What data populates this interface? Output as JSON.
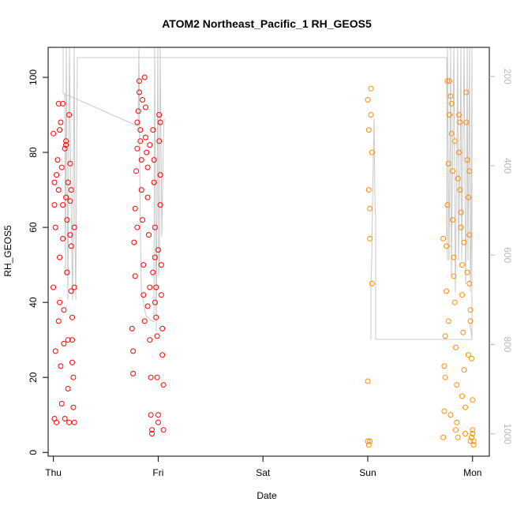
{
  "chart_data": {
    "type": "scatter",
    "title": "ATOM2 Northeast_Pacific_1 RH_GEOS5",
    "xlabel": "Date",
    "ylabel": "RH_GEOS5",
    "x_ticks": [
      "Thu",
      "Fri",
      "Sat",
      "Sun",
      "Mon"
    ],
    "xlim": [
      -0.05,
      4.16
    ],
    "ylim": [
      -1,
      108
    ],
    "y_ticks": [
      0,
      20,
      40,
      60,
      80,
      100
    ],
    "y2_ticks": [
      200,
      400,
      600,
      800,
      1000
    ],
    "y2lim": [
      1050,
      135
    ],
    "grid": false,
    "series": [
      {
        "color": "#ff0000",
        "points": [
          [
            0.0,
            85
          ],
          [
            0.01,
            72
          ],
          [
            0.0,
            44
          ],
          [
            0.02,
            27
          ],
          [
            0.01,
            9
          ],
          [
            0.03,
            8
          ],
          [
            0.02,
            60
          ],
          [
            0.04,
            78
          ],
          [
            0.05,
            93
          ],
          [
            0.05,
            70
          ],
          [
            0.06,
            52
          ],
          [
            0.06,
            40
          ],
          [
            0.07,
            23
          ],
          [
            0.08,
            13
          ],
          [
            0.07,
            88
          ],
          [
            0.08,
            76
          ],
          [
            0.09,
            66
          ],
          [
            0.09,
            57
          ],
          [
            0.1,
            38
          ],
          [
            0.1,
            29
          ],
          [
            0.11,
            9
          ],
          [
            0.12,
            83
          ],
          [
            0.12,
            68
          ],
          [
            0.13,
            62
          ],
          [
            0.13,
            48
          ],
          [
            0.14,
            30
          ],
          [
            0.14,
            17
          ],
          [
            0.15,
            8
          ],
          [
            0.15,
            90
          ],
          [
            0.16,
            77
          ],
          [
            0.16,
            67
          ],
          [
            0.17,
            55
          ],
          [
            0.17,
            43
          ],
          [
            0.18,
            36
          ],
          [
            0.18,
            24
          ],
          [
            0.19,
            20
          ],
          [
            0.19,
            12
          ],
          [
            0.2,
            60
          ],
          [
            0.2,
            44
          ],
          [
            0.01,
            66
          ],
          [
            0.03,
            74
          ],
          [
            0.06,
            86
          ],
          [
            0.09,
            93
          ],
          [
            0.11,
            81
          ],
          [
            0.14,
            72
          ],
          [
            0.16,
            58
          ],
          [
            0.18,
            30
          ],
          [
            0.2,
            8
          ],
          [
            0.05,
            35
          ],
          [
            0.12,
            82
          ],
          [
            0.17,
            70
          ],
          [
            0.75,
            33
          ],
          [
            0.76,
            27
          ],
          [
            0.76,
            21
          ],
          [
            0.77,
            56
          ],
          [
            0.78,
            47
          ],
          [
            0.78,
            65
          ],
          [
            0.79,
            75
          ],
          [
            0.8,
            81
          ],
          [
            0.8,
            88
          ],
          [
            0.81,
            91
          ],
          [
            0.82,
            96
          ],
          [
            0.82,
            99
          ],
          [
            0.83,
            86
          ],
          [
            0.84,
            78
          ],
          [
            0.84,
            70
          ],
          [
            0.85,
            62
          ],
          [
            0.86,
            50
          ],
          [
            0.86,
            42
          ],
          [
            0.87,
            35
          ],
          [
            0.88,
            92
          ],
          [
            0.88,
            84
          ],
          [
            0.89,
            80
          ],
          [
            0.9,
            76
          ],
          [
            0.9,
            68
          ],
          [
            0.91,
            58
          ],
          [
            0.92,
            44
          ],
          [
            0.92,
            30
          ],
          [
            0.93,
            20
          ],
          [
            0.93,
            10
          ],
          [
            0.94,
            6
          ],
          [
            0.94,
            5
          ],
          [
            0.95,
            86
          ],
          [
            0.96,
            78
          ],
          [
            0.96,
            72
          ],
          [
            0.97,
            60
          ],
          [
            0.97,
            52
          ],
          [
            0.98,
            44
          ],
          [
            0.98,
            36
          ],
          [
            0.99,
            31
          ],
          [
            0.99,
            20
          ],
          [
            1.0,
            10
          ],
          [
            1.0,
            8
          ],
          [
            1.01,
            90
          ],
          [
            1.01,
            83
          ],
          [
            1.02,
            74
          ],
          [
            1.02,
            66
          ],
          [
            1.03,
            50
          ],
          [
            1.03,
            42
          ],
          [
            1.04,
            33
          ],
          [
            1.04,
            26
          ],
          [
            1.05,
            18
          ],
          [
            1.05,
            6
          ],
          [
            0.8,
            60
          ],
          [
            0.85,
            94
          ],
          [
            0.9,
            39
          ],
          [
            0.95,
            48
          ],
          [
            1.0,
            54
          ],
          [
            0.83,
            83
          ],
          [
            0.87,
            100
          ],
          [
            0.92,
            82
          ],
          [
            0.97,
            40
          ],
          [
            1.02,
            88
          ]
        ]
      },
      {
        "color": "#ff8c00",
        "points": [
          [
            3.0,
            94
          ],
          [
            3.01,
            86
          ],
          [
            3.01,
            70
          ],
          [
            3.02,
            65
          ],
          [
            3.02,
            57
          ],
          [
            3.03,
            90
          ],
          [
            3.03,
            97
          ],
          [
            3.04,
            80
          ],
          [
            3.04,
            45
          ],
          [
            3.0,
            19
          ],
          [
            3.0,
            3
          ],
          [
            3.01,
            2
          ],
          [
            3.02,
            3
          ],
          [
            3.72,
            4
          ],
          [
            3.73,
            11
          ],
          [
            3.73,
            23
          ],
          [
            3.74,
            31
          ],
          [
            3.75,
            43
          ],
          [
            3.75,
            55
          ],
          [
            3.76,
            66
          ],
          [
            3.77,
            77
          ],
          [
            3.78,
            90
          ],
          [
            3.78,
            99
          ],
          [
            3.79,
            95
          ],
          [
            3.8,
            85
          ],
          [
            3.81,
            75
          ],
          [
            3.81,
            62
          ],
          [
            3.82,
            52
          ],
          [
            3.83,
            40
          ],
          [
            3.84,
            28
          ],
          [
            3.85,
            18
          ],
          [
            3.85,
            8
          ],
          [
            3.86,
            4
          ],
          [
            3.87,
            90
          ],
          [
            3.87,
            80
          ],
          [
            3.88,
            70
          ],
          [
            3.89,
            60
          ],
          [
            3.9,
            50
          ],
          [
            3.9,
            42
          ],
          [
            3.91,
            32
          ],
          [
            3.92,
            22
          ],
          [
            3.93,
            12
          ],
          [
            3.93,
            5
          ],
          [
            3.94,
            88
          ],
          [
            3.95,
            78
          ],
          [
            3.96,
            68
          ],
          [
            3.97,
            58
          ],
          [
            3.97,
            45
          ],
          [
            3.98,
            35
          ],
          [
            3.99,
            25
          ],
          [
            4.0,
            14
          ],
          [
            4.0,
            6
          ],
          [
            4.01,
            3
          ],
          [
            4.01,
            2
          ],
          [
            3.98,
            3
          ],
          [
            3.99,
            4
          ],
          [
            4.0,
            5
          ],
          [
            3.76,
            99
          ],
          [
            3.8,
            93
          ],
          [
            3.83,
            83
          ],
          [
            3.86,
            73
          ],
          [
            3.89,
            64
          ],
          [
            3.92,
            56
          ],
          [
            3.95,
            48
          ],
          [
            3.98,
            38
          ],
          [
            3.74,
            20
          ],
          [
            3.79,
            10
          ],
          [
            3.84,
            6
          ],
          [
            3.9,
            15
          ],
          [
            3.96,
            26
          ],
          [
            3.77,
            35
          ],
          [
            3.82,
            47
          ],
          [
            3.88,
            88
          ],
          [
            3.94,
            96
          ],
          [
            3.72,
            57
          ],
          [
            3.97,
            75
          ]
        ]
      }
    ]
  }
}
